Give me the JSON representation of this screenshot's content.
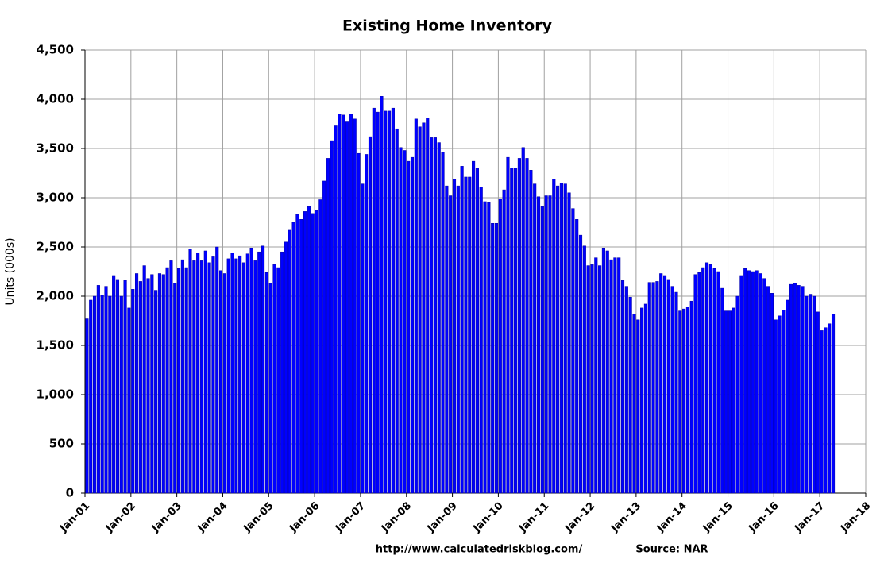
{
  "chart_data": {
    "type": "bar",
    "title": "Existing Home Inventory",
    "y_label": "Units (000s)",
    "url": "http://www.calculatedriskblog.com/",
    "source": "Source: NAR",
    "color": "#0000ff",
    "grid": true,
    "ylim": [
      0,
      4500
    ],
    "yticks": [
      0,
      500,
      {
        "value": 1000,
        "label": "1,000"
      },
      {
        "value": 1500,
        "label": "1,500"
      },
      {
        "value": 2000,
        "label": "2,000"
      },
      {
        "value": 2500,
        "label": "2,500"
      },
      {
        "value": 3000,
        "label": "3,000"
      },
      {
        "value": 3500,
        "label": "3,500"
      },
      {
        "value": 4000,
        "label": "4,000"
      },
      {
        "value": 4500,
        "label": "4,500"
      }
    ],
    "categories": [
      "Jan-01",
      null,
      null,
      null,
      null,
      null,
      null,
      null,
      null,
      null,
      null,
      null,
      "Jan-02",
      null,
      null,
      null,
      null,
      null,
      null,
      null,
      null,
      null,
      null,
      null,
      "Jan-03",
      null,
      null,
      null,
      null,
      null,
      null,
      null,
      null,
      null,
      null,
      null,
      "Jan-04",
      null,
      null,
      null,
      null,
      null,
      null,
      null,
      null,
      null,
      null,
      null,
      "Jan-05",
      null,
      null,
      null,
      null,
      null,
      null,
      null,
      null,
      null,
      null,
      null,
      "Jan-06",
      null,
      null,
      null,
      null,
      null,
      null,
      null,
      null,
      null,
      null,
      null,
      "Jan-07",
      null,
      null,
      null,
      null,
      null,
      null,
      null,
      null,
      null,
      null,
      null,
      "Jan-08",
      null,
      null,
      null,
      null,
      null,
      null,
      null,
      null,
      null,
      null,
      null,
      "Jan-09",
      null,
      null,
      null,
      null,
      null,
      null,
      null,
      null,
      null,
      null,
      null,
      "Jan-10",
      null,
      null,
      null,
      null,
      null,
      null,
      null,
      null,
      null,
      null,
      null,
      "Jan-11",
      null,
      null,
      null,
      null,
      null,
      null,
      null,
      null,
      null,
      null,
      null,
      "Jan-12",
      null,
      null,
      null,
      null,
      null,
      null,
      null,
      null,
      null,
      null,
      null,
      "Jan-13",
      null,
      null,
      null,
      null,
      null,
      null,
      null,
      null,
      null,
      null,
      null,
      "Jan-14",
      null,
      null,
      null,
      null,
      null,
      null,
      null,
      null,
      null,
      null,
      null,
      "Jan-15",
      null,
      null,
      null,
      null,
      null,
      null,
      null,
      null,
      null,
      null,
      null,
      "Jan-16",
      null,
      null,
      null,
      null,
      null,
      null,
      null,
      null,
      null,
      null,
      null,
      "Jan-17",
      null,
      null,
      null,
      null,
      null,
      null,
      null,
      null,
      null,
      null,
      null,
      "Jan-18"
    ],
    "values": [
      1770,
      1960,
      2000,
      2110,
      2010,
      2100,
      2000,
      2210,
      2170,
      2000,
      2160,
      1880,
      2070,
      2230,
      2150,
      2310,
      2180,
      2220,
      2060,
      2230,
      2220,
      2290,
      2360,
      2130,
      2280,
      2370,
      2290,
      2480,
      2360,
      2440,
      2360,
      2460,
      2340,
      2400,
      2500,
      2260,
      2230,
      2380,
      2440,
      2380,
      2410,
      2340,
      2430,
      2490,
      2360,
      2450,
      2510,
      2240,
      2130,
      2320,
      2290,
      2450,
      2550,
      2670,
      2750,
      2830,
      2780,
      2860,
      2910,
      2840,
      2870,
      2980,
      3170,
      3400,
      3580,
      3730,
      3850,
      3840,
      3770,
      3850,
      3800,
      3450,
      3140,
      3440,
      3620,
      3910,
      3870,
      4030,
      3880,
      3880,
      3910,
      3700,
      3510,
      3480,
      3370,
      3410,
      3800,
      3720,
      3760,
      3810,
      3610,
      3610,
      3560,
      3460,
      3120,
      3020,
      3190,
      3120,
      3320,
      3210,
      3210,
      3370,
      3300,
      3110,
      2960,
      2950,
      2740,
      2740,
      2990,
      3080,
      3410,
      3300,
      3300,
      3400,
      3510,
      3400,
      3280,
      3140,
      3010,
      2910,
      3020,
      3020,
      3190,
      3120,
      3150,
      3140,
      3050,
      2890,
      2780,
      2620,
      2510,
      2310,
      2320,
      2390,
      2310,
      2490,
      2460,
      2370,
      2390,
      2390,
      2160,
      2100,
      1990,
      1820,
      1760,
      1880,
      1920,
      2140,
      2140,
      2150,
      2230,
      2210,
      2170,
      2100,
      2040,
      1850,
      1870,
      1890,
      1950,
      2220,
      2240,
      2290,
      2340,
      2320,
      2280,
      2250,
      2080,
      1850,
      1850,
      1880,
      2000,
      2210,
      2280,
      2260,
      2250,
      2260,
      2230,
      2180,
      2100,
      2030,
      1760,
      1800,
      1860,
      1960,
      2120,
      2130,
      2110,
      2100,
      2000,
      2020,
      2000,
      1840,
      1650,
      1680,
      1720,
      1820,
      null,
      null,
      null,
      null,
      null,
      null,
      null,
      null,
      null
    ]
  }
}
